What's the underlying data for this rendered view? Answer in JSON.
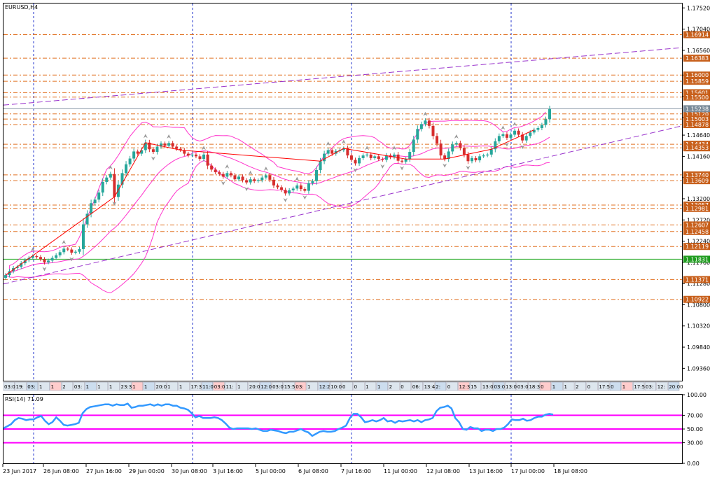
{
  "window": {
    "title": "EURUSD,H4"
  },
  "colors": {
    "bull": "#26a69a",
    "bear": "#d62d2d",
    "level": "#e07020",
    "level_label": "#c8601c",
    "channel": "#9933cc",
    "bollinger": "#ff33cc",
    "vgrid": "#2233cc",
    "rsi": "#3399ff",
    "rsi_level": "#ff00ff",
    "current": "#8a9aa8",
    "green_line": "#22aa22",
    "zigzag": "#ff0000"
  },
  "chart_data": {
    "type": "candlestick",
    "symbol": "EURUSD",
    "timeframe": "H4",
    "ylim": [
      1.0908,
      1.1762
    ],
    "y_ticks": [
      "1.17520",
      "1.17040",
      "1.16560",
      "1.16000",
      "1.15520",
      "1.15040",
      "1.14640",
      "1.14160",
      "1.13680",
      "1.13200",
      "1.12720",
      "1.12240",
      "1.11760",
      "1.11280",
      "1.10800",
      "1.10320",
      "1.09840",
      "1.09360"
    ],
    "y_tick_values": [
      1.1752,
      1.1704,
      1.1656,
      1.16,
      1.1552,
      1.1504,
      1.1464,
      1.1416,
      1.1368,
      1.132,
      1.1272,
      1.1224,
      1.1176,
      1.1128,
      1.108,
      1.1032,
      1.0984,
      1.0936
    ],
    "current_price": {
      "label": "1.15238",
      "value": 1.15238
    },
    "green_line": {
      "label": "1.11831",
      "value": 1.11831
    },
    "levels": [
      {
        "label": "1.16914",
        "value": 1.16914
      },
      {
        "label": "1.16383",
        "value": 1.16383
      },
      {
        "label": "1.16000",
        "value": 1.16
      },
      {
        "label": "1.15859",
        "value": 1.15859
      },
      {
        "label": "1.15601",
        "value": 1.15601
      },
      {
        "label": "1.15500",
        "value": 1.155
      },
      {
        "label": "1.15120",
        "value": 1.1512
      },
      {
        "label": "1.15003",
        "value": 1.15003
      },
      {
        "label": "1.14878",
        "value": 1.14878
      },
      {
        "label": "1.14434",
        "value": 1.14434
      },
      {
        "label": "1.14353",
        "value": 1.14353
      },
      {
        "label": "1.13740",
        "value": 1.1374
      },
      {
        "label": "1.13609",
        "value": 1.13609
      },
      {
        "label": "1.13057",
        "value": 1.13057
      },
      {
        "label": "1.12981",
        "value": 1.12981
      },
      {
        "label": "1.12607",
        "value": 1.12607
      },
      {
        "label": "1.12458",
        "value": 1.12458
      },
      {
        "label": "1.12119",
        "value": 1.12119
      },
      {
        "label": "1.11371",
        "value": 1.11371
      },
      {
        "label": "1.10922",
        "value": 1.10922
      }
    ],
    "x_ticks": [
      "23 Jun 2017",
      "26 Jun 08:00",
      "27 Jun 16:00",
      "29 Jun 00:00",
      "30 Jun 08:00",
      "3 Jul 16:00",
      "5 Jul 00:00",
      "6 Jul 08:00",
      "7 Jul 16:00",
      "11 Jul 00:00",
      "12 Jul 08:00",
      "13 Jul 16:00",
      "17 Jul 00:00",
      "18 Jul 08:00"
    ],
    "time_labels": [
      "03:00",
      "19:",
      "03:",
      "1",
      "1",
      "2",
      "03:",
      "1",
      "1",
      "1",
      "23:30",
      "1",
      "1",
      "20:00",
      "1",
      "1",
      "17:30",
      "11:00",
      "03:00",
      "11:",
      "1",
      "20:00",
      "12:00",
      "03:00",
      "15:55",
      "03:",
      "1",
      "12:24",
      "10:00",
      "0",
      "0",
      "1",
      "1",
      "2",
      "0",
      "06:",
      "13:40",
      "2:",
      "0",
      "12:36",
      "15",
      "13:00",
      "03:00",
      "13:00",
      "03:00",
      "18:30",
      "0",
      "1",
      "1",
      "2",
      "0",
      "17:5",
      "0",
      "1",
      "17:5",
      "03:",
      "12:",
      "20:00"
    ],
    "close": [
      1.1147,
      1.1156,
      1.1163,
      1.1166,
      1.1174,
      1.1181,
      1.1186,
      1.119,
      1.1188,
      1.1183,
      1.1176,
      1.118,
      1.1186,
      1.1192,
      1.1199,
      1.1207,
      1.1205,
      1.1198,
      1.12,
      1.1206,
      1.1262,
      1.1286,
      1.131,
      1.1318,
      1.1334,
      1.1358,
      1.1368,
      1.1376,
      1.1324,
      1.1352,
      1.1378,
      1.1398,
      1.1411,
      1.1427,
      1.1422,
      1.143,
      1.1447,
      1.1432,
      1.1426,
      1.1438,
      1.1445,
      1.144,
      1.1446,
      1.1438,
      1.1433,
      1.143,
      1.1422,
      1.1418,
      1.142,
      1.1416,
      1.141,
      1.142,
      1.1395,
      1.1386,
      1.138,
      1.1376,
      1.137,
      1.1378,
      1.1373,
      1.1364,
      1.137,
      1.1362,
      1.1357,
      1.1364,
      1.136,
      1.1362,
      1.1368,
      1.1373,
      1.1363,
      1.135,
      1.1346,
      1.134,
      1.1332,
      1.1339,
      1.1343,
      1.135,
      1.1342,
      1.1338,
      1.1355,
      1.136,
      1.1385,
      1.1405,
      1.1422,
      1.143,
      1.1422,
      1.1428,
      1.143,
      1.1434,
      1.1418,
      1.1408,
      1.14,
      1.1412,
      1.1418,
      1.142,
      1.1412,
      1.1416,
      1.141,
      1.1408,
      1.1418,
      1.1414,
      1.142,
      1.1406,
      1.1404,
      1.141,
      1.1426,
      1.1454,
      1.1478,
      1.1489,
      1.1497,
      1.1485,
      1.1462,
      1.1445,
      1.1418,
      1.141,
      1.1427,
      1.1443,
      1.1446,
      1.1435,
      1.142,
      1.1405,
      1.1412,
      1.1407,
      1.1416,
      1.1418,
      1.142,
      1.1432,
      1.145,
      1.1462,
      1.1466,
      1.1458,
      1.1465,
      1.1474,
      1.1465,
      1.1452,
      1.1462,
      1.147,
      1.1476,
      1.148,
      1.1487,
      1.15,
      1.1523
    ]
  },
  "rsi": {
    "label": "RSI(14) 71.09",
    "ylim": [
      0,
      100
    ],
    "y_ticks": [
      "100.00",
      "70.00",
      "50.00",
      "30.00",
      "0.00"
    ],
    "y_tick_values": [
      100,
      70,
      50,
      30,
      0
    ],
    "levels": [
      70,
      50,
      30
    ],
    "values": [
      51,
      54,
      57,
      63,
      66,
      65,
      63,
      64,
      64,
      67,
      69,
      62,
      57,
      60,
      67,
      62,
      56,
      55,
      56,
      57,
      59,
      73,
      79,
      82,
      83,
      84,
      85,
      86,
      86,
      84,
      86,
      85,
      85,
      87,
      81,
      82,
      84,
      84,
      85,
      86,
      84,
      86,
      84,
      86,
      86,
      84,
      84,
      81,
      80,
      78,
      73,
      67,
      69,
      66,
      66,
      66,
      67,
      66,
      63,
      58,
      52,
      50,
      51,
      51,
      51,
      51,
      50,
      51,
      49,
      47,
      47,
      49,
      48,
      47,
      45,
      44,
      46,
      46,
      48,
      50,
      47,
      45,
      40,
      43,
      46,
      47,
      46,
      46,
      47,
      50,
      52,
      55,
      66,
      72,
      72,
      67,
      60,
      61,
      63,
      61,
      63,
      66,
      61,
      62,
      59,
      62,
      61,
      62,
      63,
      61,
      63,
      60,
      63,
      64,
      66,
      76,
      81,
      82,
      84,
      80,
      66,
      60,
      50,
      49,
      53,
      51,
      51,
      47,
      49,
      49,
      47,
      50,
      50,
      52,
      57,
      64,
      63,
      63,
      65,
      62,
      63,
      66,
      68,
      68,
      71,
      72,
      71
    ]
  }
}
